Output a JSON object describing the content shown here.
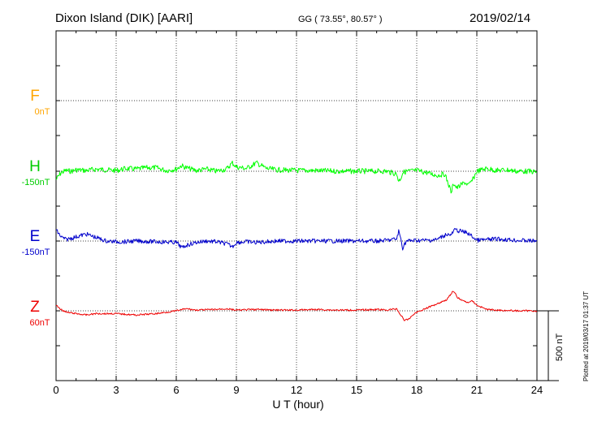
{
  "header": {
    "station": "Dixon Island (DIK)  [AARI]",
    "coords": "GG ( 73.55°,  80.57° )",
    "date": "2019/02/14"
  },
  "footer": {
    "plotted": "Plotted at 2019/03/17 01:37  UT"
  },
  "scale_bar": {
    "label": "500 nT",
    "value_nT": 500
  },
  "chart_data": {
    "type": "line",
    "xlabel": "U T (hour)",
    "ylabel": "",
    "xlim": [
      0,
      24
    ],
    "xticks": [
      0,
      3,
      6,
      9,
      12,
      15,
      18,
      21,
      24
    ],
    "xtick_labels": [
      "0",
      "3",
      "6",
      "9",
      "12",
      "15",
      "18",
      "21",
      "24"
    ],
    "grid": true,
    "series": [
      {
        "name": "F",
        "offset_label": "0nT",
        "color": "#ffa500",
        "x": [],
        "y": []
      },
      {
        "name": "H",
        "offset_label": "-150nT",
        "color": "#00ff00",
        "x": [
          0,
          0.25,
          0.5,
          0.75,
          1,
          1.5,
          2,
          2.5,
          3,
          3.5,
          4,
          4.5,
          5,
          5.5,
          6,
          6.25,
          6.5,
          7,
          7.5,
          8,
          8.5,
          8.8,
          9,
          9.5,
          10,
          10.5,
          11,
          12,
          13,
          14,
          15,
          16,
          16.5,
          17,
          17.1,
          17.2,
          17.3,
          17.5,
          18,
          18.5,
          19,
          19.4,
          19.6,
          19.75,
          19.8,
          20,
          20.2,
          20.4,
          20.6,
          20.8,
          21,
          21.5,
          22,
          22.5,
          23,
          23.5,
          24
        ],
        "y": [
          -60,
          -10,
          5,
          0,
          10,
          5,
          15,
          10,
          5,
          20,
          15,
          25,
          25,
          5,
          15,
          40,
          25,
          5,
          15,
          0,
          15,
          60,
          30,
          20,
          60,
          20,
          10,
          5,
          5,
          0,
          0,
          0,
          0,
          -20,
          -70,
          -50,
          -10,
          0,
          5,
          -10,
          -30,
          -20,
          -100,
          -160,
          -80,
          -120,
          -100,
          -80,
          -100,
          -60,
          0,
          20,
          5,
          10,
          0,
          0,
          -5
        ]
      },
      {
        "name": "E",
        "offset_label": "-150nT",
        "color": "#0000cc",
        "x": [
          0,
          0.25,
          0.5,
          1,
          1.5,
          2,
          2.5,
          3,
          3.5,
          4,
          5,
          6,
          6.3,
          6.5,
          7,
          7.5,
          8,
          8.5,
          8.8,
          9,
          9.5,
          10,
          11,
          12,
          13,
          14,
          15,
          16,
          16.5,
          17,
          17.1,
          17.2,
          17.3,
          17.4,
          17.5,
          18,
          18.5,
          19,
          19.5,
          19.7,
          19.9,
          20.2,
          20.5,
          20.8,
          21,
          21.5,
          22,
          22.5,
          23,
          24
        ],
        "y": [
          80,
          30,
          10,
          30,
          50,
          25,
          0,
          -5,
          -5,
          0,
          -5,
          -10,
          -50,
          -30,
          -10,
          0,
          -5,
          -20,
          -40,
          -10,
          -5,
          -10,
          0,
          0,
          0,
          0,
          0,
          0,
          5,
          15,
          70,
          20,
          -50,
          -20,
          0,
          5,
          5,
          10,
          50,
          40,
          80,
          70,
          60,
          30,
          5,
          10,
          15,
          10,
          5,
          0
        ]
      },
      {
        "name": "Z",
        "offset_label": "60nT",
        "color": "#ee0000",
        "x": [
          0,
          0.25,
          0.5,
          1,
          1.5,
          2,
          3,
          4,
          5,
          6,
          6.5,
          7,
          8,
          8.5,
          9,
          10,
          11,
          12,
          13,
          14,
          15,
          16,
          16.5,
          17,
          17.2,
          17.4,
          17.6,
          17.8,
          18,
          18.5,
          19,
          19.5,
          19.8,
          19.9,
          20,
          20.2,
          20.5,
          20.8,
          21,
          21.5,
          22,
          23,
          24
        ],
        "y": [
          40,
          10,
          -10,
          -20,
          -30,
          -20,
          -20,
          -30,
          -20,
          0,
          15,
          5,
          10,
          15,
          5,
          10,
          5,
          5,
          10,
          5,
          5,
          10,
          5,
          15,
          -30,
          -70,
          -60,
          -30,
          -10,
          20,
          50,
          80,
          140,
          130,
          100,
          80,
          60,
          70,
          40,
          10,
          5,
          0,
          0
        ]
      }
    ]
  }
}
